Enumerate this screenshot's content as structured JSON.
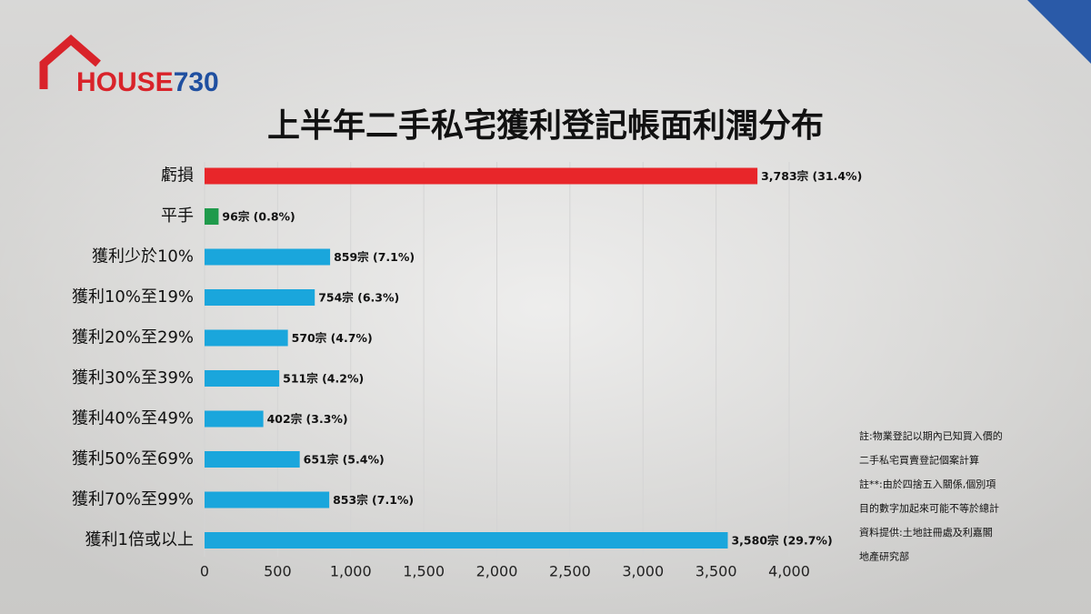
{
  "brand": [
    "HOUSE",
    "730"
  ],
  "chart_data": {
    "type": "hbar",
    "title": "上半年二手私宅獲利登記帳面利潤分布",
    "categories": [
      "虧損",
      "平手",
      "獲利少於10%",
      "獲利10%至19%",
      "獲利20%至29%",
      "獲利30%至39%",
      "獲利40%至49%",
      "獲利50%至69%",
      "獲利70%至99%",
      "獲利1倍或以上"
    ],
    "values": [
      3783,
      96,
      859,
      754,
      570,
      511,
      402,
      651,
      853,
      3580
    ],
    "value_labels": [
      "3,783宗 (31.4%)",
      "96宗 (0.8%)",
      "859宗 (7.1%)",
      "754宗 (6.3%)",
      "570宗 (4.7%)",
      "511宗 (4.2%)",
      "402宗 (3.3%)",
      "651宗 (5.4%)",
      "853宗 (7.1%)",
      "3,580宗 (29.7%)"
    ],
    "colors": [
      "#e8262a",
      "#1f9a4b",
      "#1aa6dc",
      "#1aa6dc",
      "#1aa6dc",
      "#1aa6dc",
      "#1aa6dc",
      "#1aa6dc",
      "#1aa6dc",
      "#1aa6dc"
    ],
    "xlim": [
      0,
      4000
    ],
    "xticks": [
      0,
      500,
      {
        "value": 1000,
        "label": "1,000"
      },
      {
        "value": 1500,
        "label": "1,500"
      },
      {
        "value": 2000,
        "label": "2,000"
      },
      {
        "value": 2500,
        "label": "2,500"
      },
      {
        "value": 3000,
        "label": "3,000"
      },
      {
        "value": 3500,
        "label": "3,500"
      },
      {
        "value": 4000,
        "label": "4,000"
      }
    ],
    "grid": true,
    "annotations": [
      "註:物業登記以期內已知買入價的",
      "二手私宅買賣登記個案計算",
      "註**:由於四捨五入關係,個別項",
      "目的數字加起來可能不等於總計",
      "資料提供:土地註冊處及利嘉閣",
      "地產研究部"
    ]
  }
}
